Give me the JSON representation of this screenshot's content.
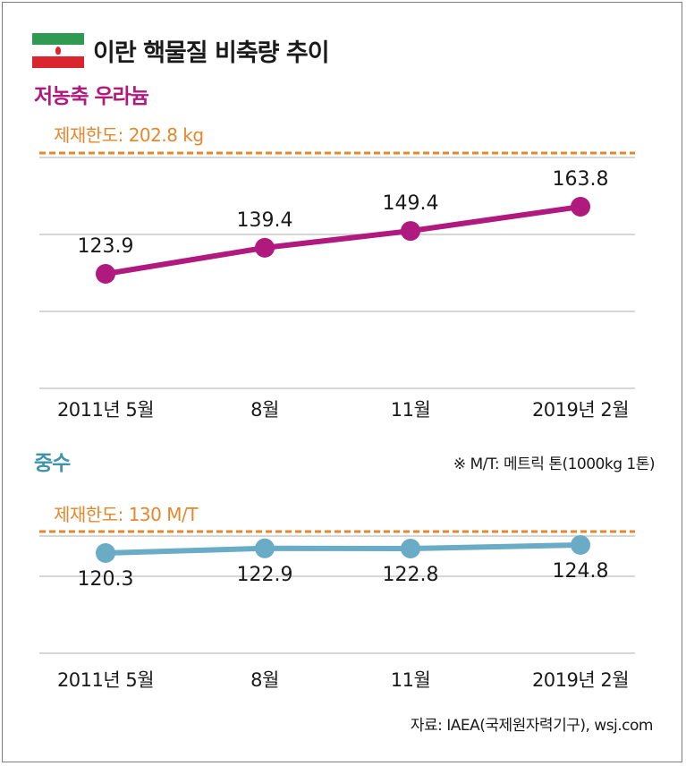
{
  "header": {
    "title": "이란 핵물질 비축량 추이",
    "flag_icon": "iran-flag-icon"
  },
  "note": "※ M/T: 메트릭 톤(1000kg 1톤)",
  "source": "자료: IAEA(국제원자력기구), wsj.com",
  "colors": {
    "uranium": "#b0197e",
    "water": "#6aabc5",
    "limit": "#e5872b",
    "grid": "#c8c8c8"
  },
  "chart_data": [
    {
      "type": "line",
      "title": "저농축 우라늄",
      "limit_label": "제재한도: 202.8 kg",
      "limit_value": 202.8,
      "categories": [
        "2011년 5월",
        "8월",
        "11월",
        "2019년 2월"
      ],
      "values": [
        123.9,
        139.4,
        149.4,
        163.8
      ],
      "value_labels": [
        "123.9",
        "139.4",
        "149.4",
        "163.8"
      ],
      "grid": true
    },
    {
      "type": "line",
      "title": "중수",
      "limit_label": "제재한도: 130 M/T",
      "limit_value": 130,
      "categories": [
        "2011년 5월",
        "8월",
        "11월",
        "2019년 2월"
      ],
      "values": [
        120.3,
        122.9,
        122.8,
        124.8
      ],
      "value_labels": [
        "120.3",
        "122.9",
        "122.8",
        "124.8"
      ],
      "grid": true
    }
  ]
}
